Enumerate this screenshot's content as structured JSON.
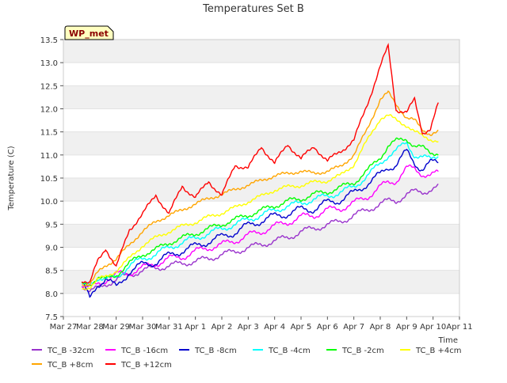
{
  "chart_data": {
    "type": "line",
    "title": "Temperatures Set B",
    "xlabel": "Time",
    "ylabel": "Temperature (C)",
    "badge": "WP_met",
    "xlim": [
      0,
      15
    ],
    "ylim": [
      7.5,
      13.5
    ],
    "x_ticks": [
      {
        "x": 0,
        "label": "Mar 27"
      },
      {
        "x": 1,
        "label": "Mar 28"
      },
      {
        "x": 2,
        "label": "Mar 29"
      },
      {
        "x": 3,
        "label": "Mar 30"
      },
      {
        "x": 4,
        "label": "Mar 31"
      },
      {
        "x": 5,
        "label": "Apr 1"
      },
      {
        "x": 6,
        "label": "Apr 2"
      },
      {
        "x": 7,
        "label": "Apr 3"
      },
      {
        "x": 8,
        "label": "Apr 4"
      },
      {
        "x": 9,
        "label": "Apr 5"
      },
      {
        "x": 10,
        "label": "Apr 6"
      },
      {
        "x": 11,
        "label": "Apr 7"
      },
      {
        "x": 12,
        "label": "Apr 8"
      },
      {
        "x": 13,
        "label": "Apr 9"
      },
      {
        "x": 14,
        "label": "Apr 10"
      },
      {
        "x": 15,
        "label": "Apr 11"
      }
    ],
    "y_ticks": [
      "7.5",
      "8.0",
      "8.5",
      "9.0",
      "9.5",
      "10.0",
      "10.5",
      "11.0",
      "11.5",
      "12.0",
      "12.5",
      "13.0",
      "13.5"
    ],
    "grid": "horizontal bands",
    "legend_position": "bottom",
    "x": [
      0.7,
      1.0,
      1.3,
      1.6,
      2.0,
      2.5,
      3.0,
      3.5,
      4.0,
      4.5,
      5.0,
      5.5,
      6.0,
      6.5,
      7.0,
      7.5,
      8.0,
      8.5,
      9.0,
      9.5,
      10.0,
      10.5,
      11.0,
      11.5,
      12.0,
      12.3,
      12.6,
      13.0,
      13.3,
      13.6,
      13.9,
      14.2
    ],
    "series": [
      {
        "name": "TC_B -32cm",
        "color": "#9932cc",
        "values": [
          8.2,
          8.05,
          8.1,
          8.2,
          8.3,
          8.4,
          8.5,
          8.55,
          8.6,
          8.65,
          8.7,
          8.75,
          8.85,
          8.9,
          9.0,
          9.05,
          9.15,
          9.2,
          9.35,
          9.4,
          9.5,
          9.55,
          9.7,
          9.8,
          9.95,
          10.0,
          10.0,
          10.15,
          10.2,
          10.2,
          10.25,
          10.3
        ]
      },
      {
        "name": "TC_B -16cm",
        "color": "#ff00ff",
        "values": [
          8.2,
          8.1,
          8.2,
          8.3,
          8.4,
          8.45,
          8.55,
          8.65,
          8.75,
          8.8,
          8.9,
          9.0,
          9.05,
          9.15,
          9.25,
          9.35,
          9.45,
          9.55,
          9.65,
          9.7,
          9.8,
          9.85,
          9.95,
          10.1,
          10.3,
          10.4,
          10.45,
          10.7,
          10.7,
          10.6,
          10.55,
          10.6
        ]
      },
      {
        "name": "TC_B -8cm",
        "color": "#0000cd",
        "values": [
          8.25,
          7.85,
          8.2,
          8.35,
          8.1,
          8.5,
          8.6,
          8.7,
          8.8,
          8.95,
          9.0,
          9.15,
          9.2,
          9.35,
          9.45,
          9.6,
          9.65,
          9.75,
          9.8,
          9.85,
          9.95,
          10.05,
          10.15,
          10.4,
          10.55,
          10.75,
          10.8,
          11.05,
          10.85,
          10.7,
          10.8,
          10.85
        ]
      },
      {
        "name": "TC_B -4cm",
        "color": "#00ffff",
        "values": [
          8.15,
          8.2,
          8.35,
          8.3,
          8.35,
          8.6,
          8.75,
          8.85,
          9.0,
          9.1,
          9.2,
          9.3,
          9.4,
          9.5,
          9.6,
          9.7,
          9.8,
          9.9,
          9.95,
          10.05,
          10.1,
          10.2,
          10.3,
          10.55,
          10.8,
          11.0,
          11.1,
          11.25,
          11.0,
          10.95,
          10.9,
          11.0
        ]
      },
      {
        "name": "TC_B -2cm",
        "color": "#00ff00",
        "values": [
          8.2,
          8.2,
          8.35,
          8.3,
          8.4,
          8.65,
          8.85,
          8.95,
          9.1,
          9.2,
          9.3,
          9.4,
          9.5,
          9.6,
          9.7,
          9.8,
          9.9,
          10.0,
          10.05,
          10.15,
          10.2,
          10.3,
          10.4,
          10.65,
          10.95,
          11.2,
          11.3,
          11.35,
          11.2,
          11.15,
          11.05,
          11.05
        ]
      },
      {
        "name": "TC_B +4cm",
        "color": "#ffff00",
        "values": [
          8.1,
          8.15,
          8.3,
          8.35,
          8.5,
          8.75,
          9.05,
          9.2,
          9.35,
          9.45,
          9.55,
          9.65,
          9.75,
          9.85,
          10.0,
          10.1,
          10.25,
          10.3,
          10.35,
          10.4,
          10.45,
          10.55,
          10.8,
          11.3,
          11.8,
          11.85,
          11.75,
          11.65,
          11.5,
          11.4,
          11.35,
          11.3
        ]
      },
      {
        "name": "TC_B +8cm",
        "color": "#ffa500",
        "values": [
          8.2,
          8.2,
          8.45,
          8.6,
          8.75,
          9.05,
          9.35,
          9.55,
          9.7,
          9.8,
          9.95,
          10.05,
          10.15,
          10.25,
          10.35,
          10.45,
          10.55,
          10.6,
          10.65,
          10.6,
          10.65,
          10.75,
          11.0,
          11.55,
          12.2,
          12.35,
          12.1,
          11.8,
          11.75,
          11.55,
          11.45,
          11.5
        ]
      },
      {
        "name": "TC_B +12cm",
        "color": "#ff0000",
        "values": [
          8.3,
          8.2,
          8.7,
          9.0,
          8.55,
          9.4,
          9.7,
          10.15,
          9.7,
          10.35,
          10.05,
          10.45,
          10.1,
          10.8,
          10.7,
          11.2,
          10.8,
          11.25,
          10.9,
          11.2,
          10.85,
          11.1,
          11.3,
          12.1,
          12.9,
          13.35,
          12.0,
          11.9,
          12.2,
          11.5,
          11.55,
          12.1
        ]
      }
    ]
  }
}
